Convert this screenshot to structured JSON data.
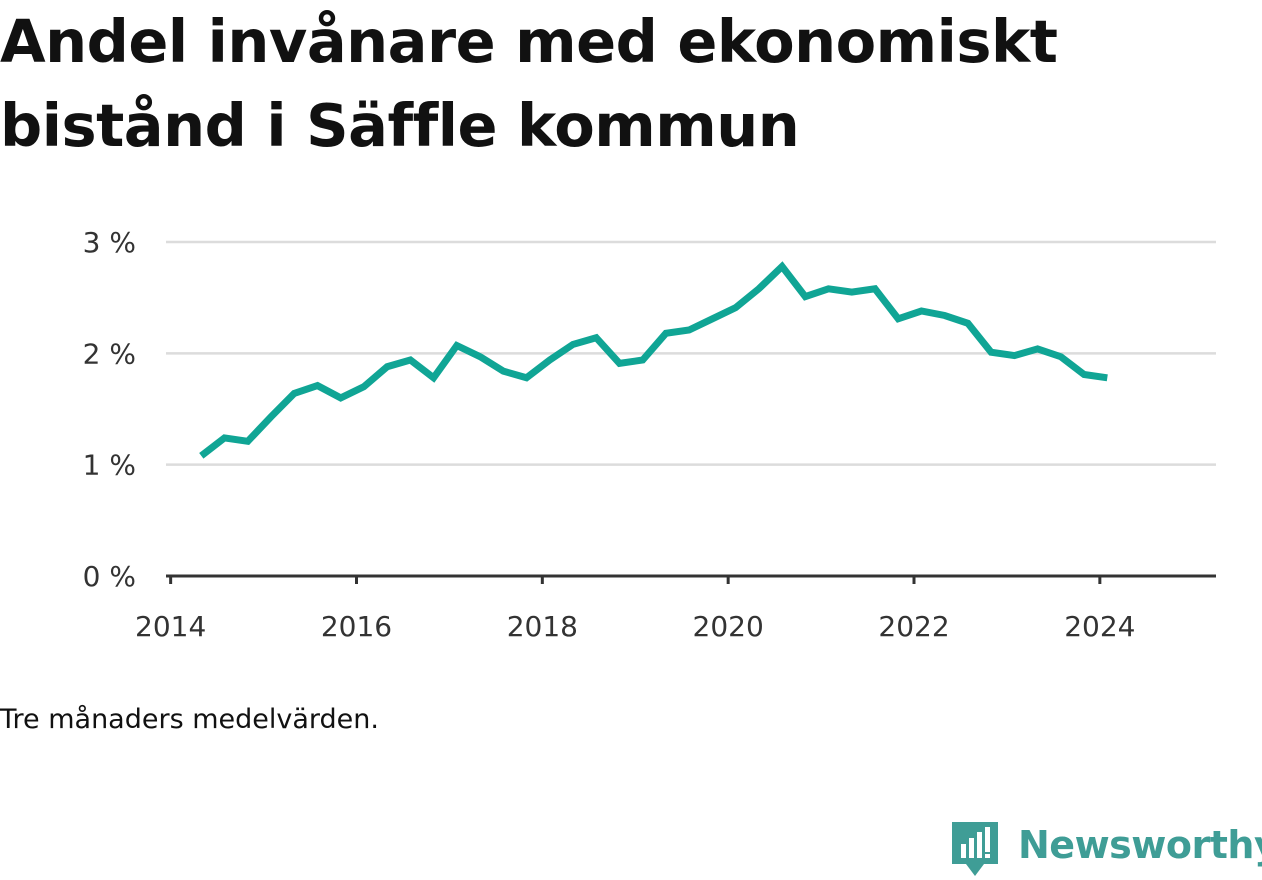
{
  "title": "Andel invånare med ekonomiskt bistånd i Säffle kommun",
  "caption": "Tre månaders medelvärden.",
  "brand": {
    "name": "Newsworthy",
    "icon": "newsworthy-logo-icon",
    "color": "#3f9d96"
  },
  "chart_data": {
    "type": "line",
    "title": "Andel invånare med ekonomiskt bistånd i Säffle kommun",
    "xlabel": "",
    "ylabel": "",
    "xlim": [
      2013.95,
      2025.25
    ],
    "ylim": [
      0,
      3
    ],
    "x_ticks": [
      2014,
      2016,
      2018,
      2020,
      2022,
      2024
    ],
    "y_ticks": [
      {
        "value": 0,
        "label": "0 %"
      },
      {
        "value": 1,
        "label": "1 %"
      },
      {
        "value": 2,
        "label": "2 %"
      },
      {
        "value": 3,
        "label": "3 %"
      }
    ],
    "grid": "horizontal",
    "line_color": "#10a595",
    "series": [
      {
        "name": "",
        "x": [
          2014.33,
          2014.58,
          2014.83,
          2015.08,
          2015.33,
          2015.58,
          2015.83,
          2016.08,
          2016.33,
          2016.58,
          2016.83,
          2017.08,
          2017.33,
          2017.58,
          2017.83,
          2018.08,
          2018.33,
          2018.58,
          2018.83,
          2019.08,
          2019.33,
          2019.58,
          2019.83,
          2020.08,
          2020.33,
          2020.58,
          2020.83,
          2021.08,
          2021.33,
          2021.58,
          2021.83,
          2022.08,
          2022.33,
          2022.58,
          2022.83,
          2023.08,
          2023.33,
          2023.58,
          2023.83,
          2024.08
        ],
        "values": [
          1.08,
          1.24,
          1.21,
          1.43,
          1.64,
          1.71,
          1.6,
          1.7,
          1.88,
          1.94,
          1.78,
          2.07,
          1.97,
          1.84,
          1.78,
          1.94,
          2.08,
          2.14,
          1.91,
          1.94,
          2.18,
          2.21,
          2.31,
          2.41,
          2.58,
          2.78,
          2.51,
          2.58,
          2.55,
          2.58,
          2.31,
          2.38,
          2.34,
          2.27,
          2.01,
          1.98,
          2.04,
          1.97,
          1.81,
          1.78
        ]
      }
    ]
  }
}
